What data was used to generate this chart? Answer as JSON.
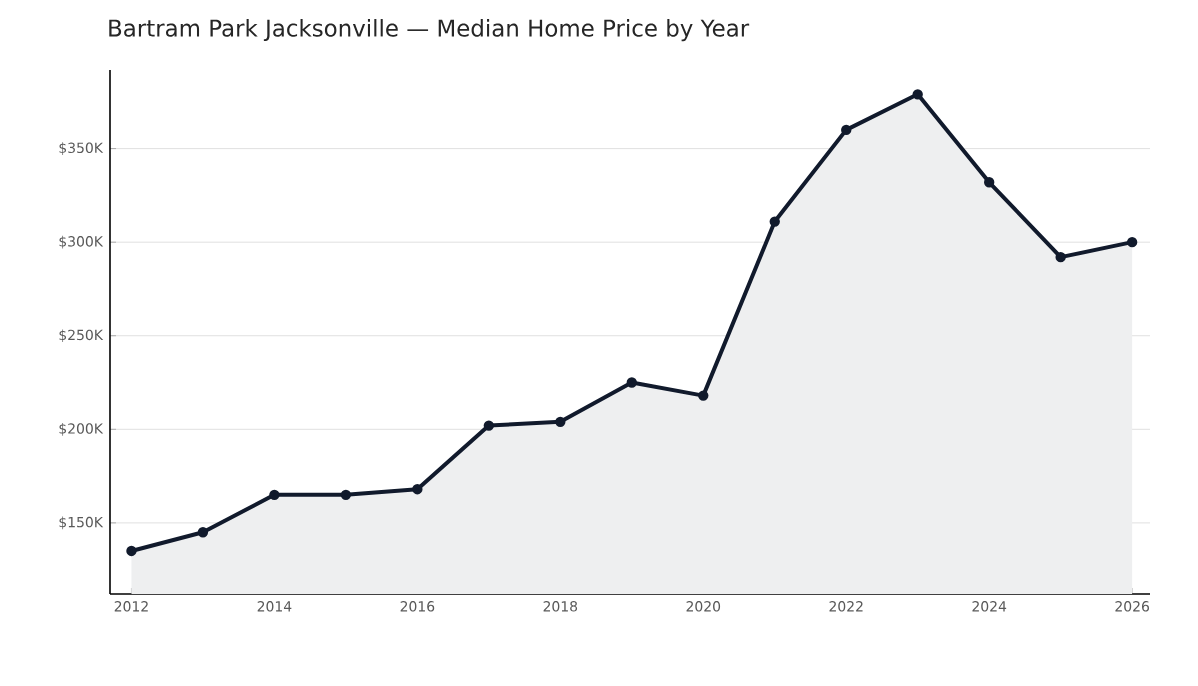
{
  "chart_data": {
    "type": "area",
    "title": "Bartram Park Jacksonville — Median Home Price by Year",
    "x": [
      2012,
      2013,
      2014,
      2015,
      2016,
      2017,
      2018,
      2019,
      2020,
      2021,
      2022,
      2023,
      2024,
      2025,
      2026
    ],
    "series": [
      {
        "color": "#111a2c",
        "values": [
          135000,
          145000,
          165000,
          165000,
          168000,
          202000,
          204000,
          225000,
          218000,
          311000,
          360000,
          379000,
          332000,
          292000,
          300000
        ]
      }
    ],
    "xlim": [
      2011.7,
      2026.25
    ],
    "xticks": [
      2012,
      2014,
      2016,
      2018,
      2020,
      2022,
      2024,
      2026
    ],
    "ylim": [
      112000,
      392000
    ],
    "yticks": [
      {
        "value": 150000,
        "label": "$150K"
      },
      {
        "value": 200000,
        "label": "$200K"
      },
      {
        "value": 250000,
        "label": "$250K"
      },
      {
        "value": 300000,
        "label": "$300K"
      },
      {
        "value": 350000,
        "label": "$350K"
      }
    ],
    "grid": "y",
    "marker": "circle",
    "line_style": "solid"
  }
}
